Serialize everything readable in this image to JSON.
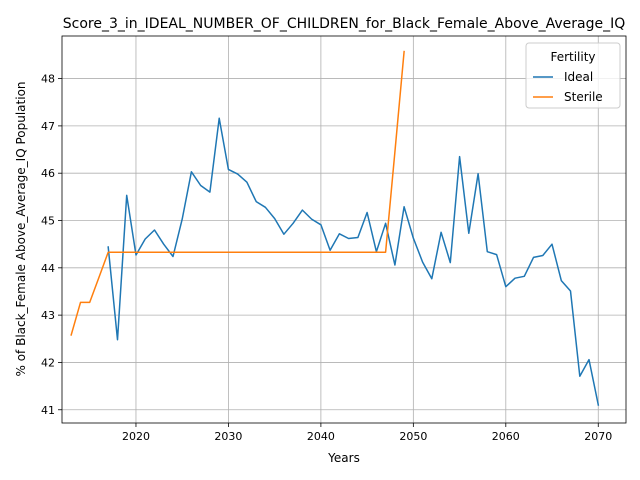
{
  "chart_data": {
    "type": "line",
    "title": "Score_3_in_IDEAL_NUMBER_OF_CHILDREN_for_Black_Female_Above_Average_IQ",
    "xlabel": "Years",
    "ylabel": "% of Black_Female Above_Average_IQ Population",
    "xlim": [
      2012,
      2073
    ],
    "ylim": [
      40.72,
      48.9
    ],
    "xticks": [
      2020,
      2030,
      2040,
      2050,
      2060,
      2070
    ],
    "yticks": [
      41,
      42,
      43,
      44,
      45,
      46,
      47,
      48
    ],
    "grid": true,
    "legend": {
      "title": "Fertility",
      "placement": "top-right"
    },
    "series": [
      {
        "name": "Ideal",
        "color": "#1f77b4",
        "x": [
          2017,
          2018,
          2019,
          2020,
          2021,
          2022,
          2023,
          2024,
          2025,
          2026,
          2027,
          2028,
          2029,
          2030,
          2031,
          2032,
          2033,
          2034,
          2035,
          2036,
          2037,
          2038,
          2039,
          2040,
          2041,
          2042,
          2043,
          2044,
          2045,
          2046,
          2047,
          2048,
          2049,
          2050,
          2051,
          2052,
          2053,
          2054,
          2055,
          2056,
          2057,
          2058,
          2059,
          2060,
          2061,
          2062,
          2063,
          2064,
          2065,
          2066,
          2067,
          2068,
          2069,
          2070
        ],
        "y": [
          44.44,
          42.48,
          45.53,
          44.27,
          44.61,
          44.8,
          44.5,
          44.24,
          45.03,
          46.03,
          45.74,
          45.6,
          47.16,
          46.08,
          45.98,
          45.81,
          45.4,
          45.28,
          45.04,
          44.71,
          44.94,
          45.22,
          45.03,
          44.91,
          44.37,
          44.72,
          44.62,
          44.64,
          45.17,
          44.34,
          44.94,
          44.06,
          45.29,
          44.63,
          44.12,
          43.77,
          44.75,
          44.11,
          46.35,
          44.73,
          45.99,
          44.34,
          44.28,
          43.6,
          43.78,
          43.82,
          44.22,
          44.26,
          44.5,
          43.73,
          43.51,
          41.71,
          42.06,
          41.1
        ]
      },
      {
        "name": "Sterile",
        "color": "#ff7f0e",
        "x": [
          2013,
          2014,
          2015,
          2016,
          2017,
          2018,
          2019,
          2020,
          2021,
          2022,
          2023,
          2024,
          2025,
          2026,
          2027,
          2028,
          2029,
          2030,
          2031,
          2032,
          2033,
          2034,
          2035,
          2036,
          2037,
          2038,
          2039,
          2040,
          2041,
          2042,
          2043,
          2044,
          2045,
          2046,
          2047,
          2048,
          2049
        ],
        "y": [
          42.58,
          43.27,
          43.27,
          43.8,
          44.33,
          44.33,
          44.33,
          44.33,
          44.33,
          44.33,
          44.33,
          44.33,
          44.33,
          44.33,
          44.33,
          44.33,
          44.33,
          44.33,
          44.33,
          44.33,
          44.33,
          44.33,
          44.33,
          44.33,
          44.33,
          44.33,
          44.33,
          44.33,
          44.33,
          44.33,
          44.33,
          44.33,
          44.33,
          44.33,
          44.33,
          46.45,
          48.57
        ]
      }
    ]
  }
}
